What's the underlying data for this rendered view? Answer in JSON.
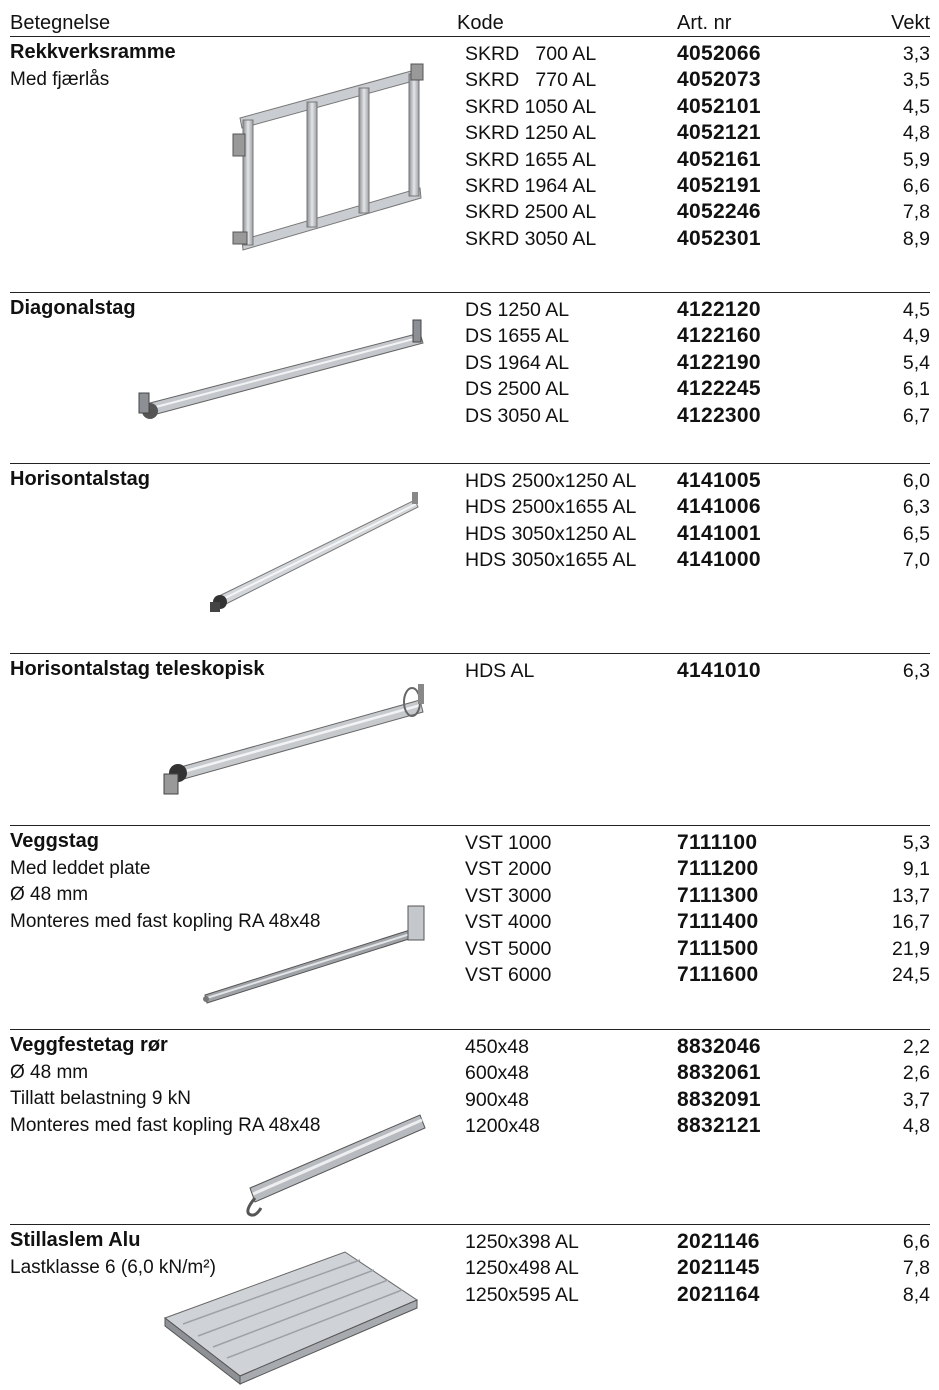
{
  "header": {
    "name": "Betegnelse",
    "code": "Kode",
    "art": "Art. nr",
    "weight": "Vekt"
  },
  "sections": [
    {
      "title": "Rekkverksramme",
      "desc": [
        "Med fjærlås"
      ],
      "rows": [
        {
          "code": "SKRD   700 AL",
          "art": "4052066",
          "weight": "3,3"
        },
        {
          "code": "SKRD   770 AL",
          "art": "4052073",
          "weight": "3,5"
        },
        {
          "code": "SKRD 1050 AL",
          "art": "4052101",
          "weight": "4,5"
        },
        {
          "code": "SKRD 1250 AL",
          "art": "4052121",
          "weight": "4,8"
        },
        {
          "code": "SKRD 1655 AL",
          "art": "4052161",
          "weight": "5,9"
        },
        {
          "code": "SKRD 1964 AL",
          "art": "4052191",
          "weight": "6,6"
        },
        {
          "code": "SKRD 2500 AL",
          "art": "4052246",
          "weight": "7,8"
        },
        {
          "code": "SKRD 3050 AL",
          "art": "4052301",
          "weight": "8,9"
        }
      ]
    },
    {
      "title": "Diagonalstag",
      "desc": [],
      "rows": [
        {
          "code": "DS 1250 AL",
          "art": "4122120",
          "weight": "4,5"
        },
        {
          "code": "DS 1655 AL",
          "art": "4122160",
          "weight": "4,9"
        },
        {
          "code": "DS 1964 AL",
          "art": "4122190",
          "weight": "5,4"
        },
        {
          "code": "DS 2500 AL",
          "art": "4122245",
          "weight": "6,1"
        },
        {
          "code": "DS 3050 AL",
          "art": "4122300",
          "weight": "6,7"
        }
      ]
    },
    {
      "title": "Horisontalstag",
      "desc": [],
      "rows": [
        {
          "code": "HDS 2500x1250 AL",
          "art": "4141005",
          "weight": "6,0"
        },
        {
          "code": "HDS 2500x1655 AL",
          "art": "4141006",
          "weight": "6,3"
        },
        {
          "code": "HDS 3050x1250 AL",
          "art": "4141001",
          "weight": "6,5"
        },
        {
          "code": "HDS 3050x1655 AL",
          "art": "4141000",
          "weight": "7,0"
        }
      ]
    },
    {
      "title": "Horisontalstag teleskopisk",
      "desc": [],
      "rows": [
        {
          "code": "HDS AL",
          "art": "4141010",
          "weight": "6,3"
        }
      ]
    },
    {
      "title": "Veggstag",
      "desc": [
        "Med leddet plate",
        "Ø 48 mm",
        "Monteres med fast kopling RA 48x48"
      ],
      "rows": [
        {
          "code": "VST 1000",
          "art": "7111100",
          "weight": "5,3"
        },
        {
          "code": "VST 2000",
          "art": "7111200",
          "weight": "9,1"
        },
        {
          "code": "VST 3000",
          "art": "7111300",
          "weight": "13,7"
        },
        {
          "code": "VST 4000",
          "art": "7111400",
          "weight": "16,7"
        },
        {
          "code": "VST 5000",
          "art": "7111500",
          "weight": "21,9"
        },
        {
          "code": "VST 6000",
          "art": "7111600",
          "weight": "24,5"
        }
      ]
    },
    {
      "title": "Veggfestetag rør",
      "desc": [
        "Ø 48 mm",
        "Tillatt belastning 9 kN",
        "Monteres med fast kopling RA 48x48"
      ],
      "rows": [
        {
          "code": "450x48",
          "art": "8832046",
          "weight": "2,2"
        },
        {
          "code": "600x48",
          "art": "8832061",
          "weight": "2,6"
        },
        {
          "code": "900x48",
          "art": "8832091",
          "weight": "3,7"
        },
        {
          "code": "1200x48",
          "art": "8832121",
          "weight": "4,8"
        }
      ]
    },
    {
      "title": "Stillaslem Alu",
      "desc": [
        "Lastklasse 6 (6,0 kN/m²)"
      ],
      "rows": [
        {
          "code": "1250x398 AL",
          "art": "2021146",
          "weight": "6,6"
        },
        {
          "code": "1250x498 AL",
          "art": "2021145",
          "weight": "7,8"
        },
        {
          "code": "1250x595 AL",
          "art": "2021164",
          "weight": "8,4"
        }
      ]
    }
  ]
}
